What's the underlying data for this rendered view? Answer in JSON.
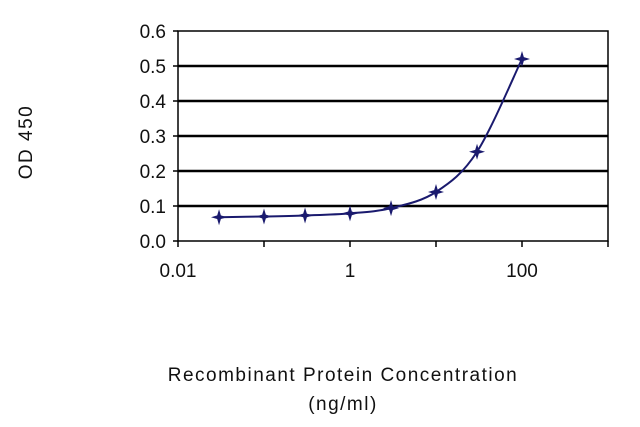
{
  "chart_data": {
    "type": "line",
    "title": "",
    "xlabel_line1": "Recombinant Protein Concentration",
    "xlabel_line2": "(ng/ml)",
    "ylabel": "OD 450",
    "x_scale": "log",
    "xlim": [
      0.01,
      1000
    ],
    "ylim": [
      0,
      0.6
    ],
    "x_ticks": [
      0.01,
      1,
      100
    ],
    "x_tick_labels": [
      "0.01",
      "1",
      "100"
    ],
    "y_ticks": [
      0,
      0.1,
      0.2,
      0.3,
      0.4,
      0.5,
      0.6
    ],
    "y_tick_labels": [
      "0.0",
      "0.1",
      "0.2",
      "0.3",
      "0.4",
      "0.5",
      "0.6"
    ],
    "grid": "horizontal",
    "legend": "none",
    "series": [
      {
        "x": [
          0.03,
          0.1,
          0.3,
          1,
          3,
          10,
          30,
          100
        ],
        "y": [
          0.068,
          0.07,
          0.073,
          0.079,
          0.094,
          0.14,
          0.255,
          0.52
        ]
      }
    ],
    "colors": {
      "line": "#1a1a6e",
      "marker": "#1a1a6e",
      "grid": "#000000"
    }
  }
}
